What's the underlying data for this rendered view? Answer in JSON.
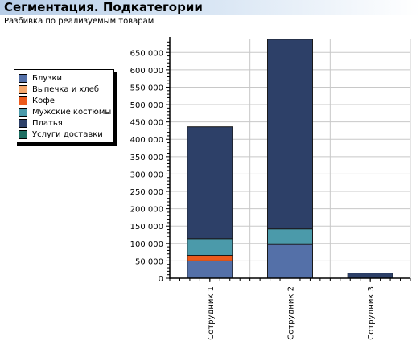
{
  "header": {
    "title": "Сегментация. Подкатегории",
    "subtitle": "Разбивка по реализуемым товарам"
  },
  "chart_data": {
    "type": "bar",
    "stacked": true,
    "categories": [
      "Сотрудник 1",
      "Сотрудник 2",
      "Сотрудник 3"
    ],
    "series": [
      {
        "name": "Блузки",
        "color": "#5470a8",
        "values": [
          50000,
          97000,
          0
        ]
      },
      {
        "name": "Выпечка и хлеб",
        "color": "#f4a76c",
        "values": [
          0,
          0,
          0
        ]
      },
      {
        "name": "Кофе",
        "color": "#ec5a1c",
        "values": [
          16000,
          2000,
          0
        ]
      },
      {
        "name": "Мужские костюмы",
        "color": "#4b9aaa",
        "values": [
          48000,
          43000,
          0
        ]
      },
      {
        "name": "Платья",
        "color": "#2d4068",
        "values": [
          322000,
          546000,
          15000
        ]
      },
      {
        "name": "Услуги доставки",
        "color": "#1d6e62",
        "values": [
          0,
          0,
          0
        ]
      }
    ],
    "yticks": [
      "0",
      "50 000",
      "100 000",
      "150 000",
      "200 000",
      "250 000",
      "300 000",
      "350 000",
      "400 000",
      "450 000",
      "500 000",
      "550 000",
      "600 000",
      "650 000"
    ],
    "ylim": [
      0,
      690000
    ],
    "grid": true,
    "legend_position": "left"
  }
}
